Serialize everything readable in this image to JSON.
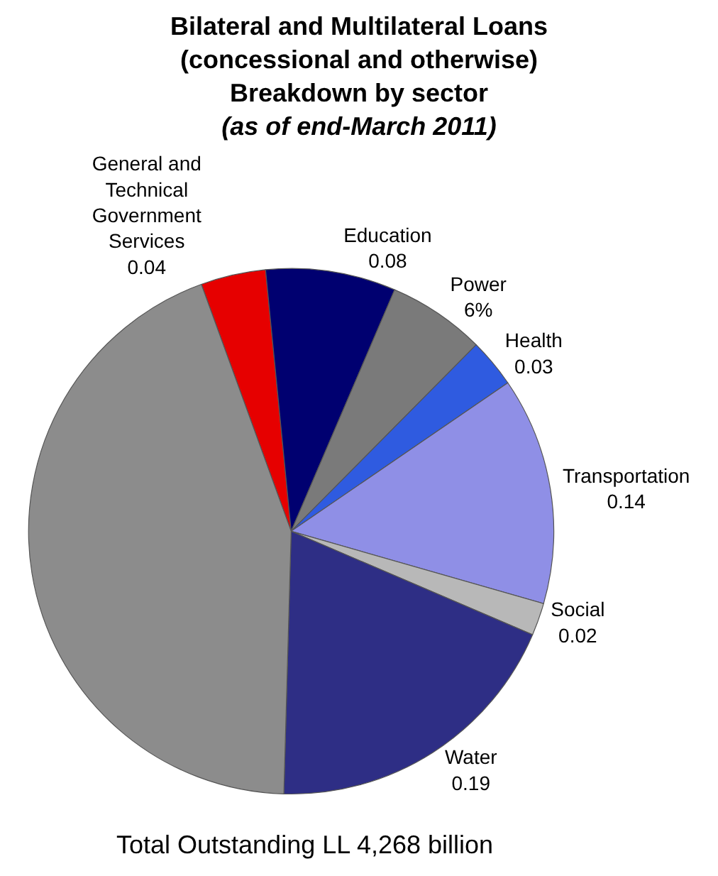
{
  "chart_data": {
    "type": "pie",
    "title": "Bilateral and Multilateral Loans\n(concessional and otherwise)\nBreakdown by sector",
    "subtitle": "(as of end-March 2011)",
    "categories": [
      "General and Technical Government Services",
      "Education",
      "Power",
      "Health",
      "Transportation",
      "Social",
      "Water",
      null
    ],
    "values": [
      0.04,
      0.08,
      0.06,
      0.03,
      0.14,
      0.02,
      0.19,
      0.44
    ],
    "value_labels": [
      "0.04",
      "0.08",
      "6%",
      "0.03",
      "0.14",
      "0.02",
      "0.19",
      null
    ],
    "colors": [
      "#e60000",
      "#000070",
      "#7a7a7a",
      "#2f5be0",
      "#8f8fe6",
      "#b8b8b8",
      "#2e2e85",
      "#8c8c8c"
    ],
    "annotations": [
      "Total Outstanding LL 4,268 billion"
    ],
    "legend": false
  }
}
